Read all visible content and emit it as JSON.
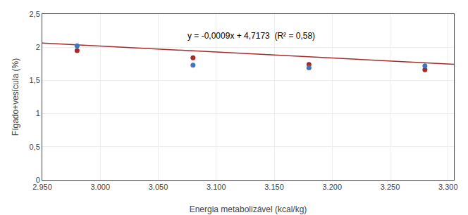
{
  "chart_data": {
    "type": "scatter",
    "xlabel": "Energia metabolizável (kcal/kg)",
    "ylabel": "Fígado+vesícula (%)",
    "series": [
      {
        "type": "line",
        "color": "#A52A2A",
        "line_style": "solid",
        "x": [
          2950,
          3305
        ],
        "values": [
          2.0623,
          1.7428
        ]
      },
      {
        "type": "scatter",
        "color": "#A52A2A",
        "marker": "circle",
        "x": [
          2980,
          3080,
          3180,
          3280
        ],
        "values": [
          1.95,
          1.84,
          1.74,
          1.66
        ]
      },
      {
        "type": "scatter",
        "color": "#4472C4",
        "marker": "circle",
        "x": [
          2980,
          3080,
          3180,
          3280
        ],
        "values": [
          2.02,
          1.73,
          1.69,
          1.72
        ]
      }
    ],
    "annotations": [
      {
        "text": "y = -0,0009x + 4,7173  (R² = 0,58)",
        "x": 3130,
        "y": 2.17
      }
    ],
    "xlim": [
      2950,
      3305
    ],
    "xticks": [
      {
        "value": 2950,
        "label": "2.950"
      },
      {
        "value": 3000,
        "label": "3.000"
      },
      {
        "value": 3050,
        "label": "3.050"
      },
      {
        "value": 3100,
        "label": "3.100"
      },
      {
        "value": 3150,
        "label": "3.150"
      },
      {
        "value": 3200,
        "label": "3.200"
      },
      {
        "value": 3250,
        "label": "3.250"
      },
      {
        "value": 3300,
        "label": "3.300"
      }
    ],
    "ylim": [
      0,
      2.5
    ],
    "yticks": [
      0,
      {
        "value": 0.5,
        "label": "0,5"
      },
      1,
      {
        "value": 1.5,
        "label": "1,5"
      },
      2,
      {
        "value": 2.5,
        "label": "2,5"
      }
    ],
    "grid": true
  }
}
